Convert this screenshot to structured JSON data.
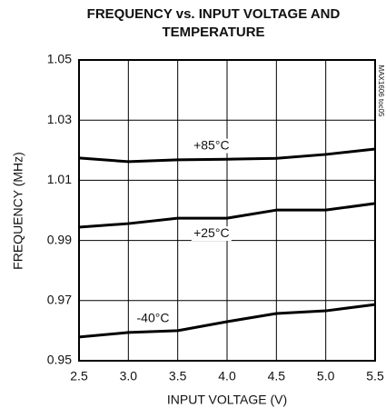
{
  "chart_data": {
    "type": "line",
    "title": [
      "FREQUENCY vs. INPUT VOLTAGE AND",
      "TEMPERATURE"
    ],
    "x_label": "INPUT VOLTAGE (V)",
    "y_label": "FREQUENCY (MHz)",
    "note": "MAX1606 toc05",
    "x": [
      2.5,
      3.0,
      3.5,
      4.0,
      4.5,
      5.0,
      5.5
    ],
    "series": [
      {
        "name": "+85°C",
        "color": "#000000",
        "values": [
          1.0174,
          1.0162,
          1.0168,
          1.017,
          1.0173,
          1.0186,
          1.0204
        ]
      },
      {
        "name": "+25°C",
        "color": "#000000",
        "values": [
          0.9944,
          0.9956,
          0.9974,
          0.9974,
          1.0001,
          1.0001,
          1.0023
        ]
      },
      {
        "name": "-40°C",
        "color": "#000000",
        "values": [
          0.9579,
          0.9594,
          0.96,
          0.963,
          0.9657,
          0.9666,
          0.9687
        ]
      }
    ],
    "xlim": [
      2.5,
      5.5
    ],
    "ylim": [
      0.95,
      1.05
    ],
    "xticks": [
      2.5,
      {
        "value": 3,
        "label": "3.0"
      },
      3.5,
      {
        "value": 4,
        "label": "4.0"
      },
      4.5,
      {
        "value": 5,
        "label": "5.0"
      },
      5.5
    ],
    "yticks": [
      0.95,
      0.97,
      0.99,
      1.01,
      1.03,
      1.05
    ],
    "grid": true
  }
}
